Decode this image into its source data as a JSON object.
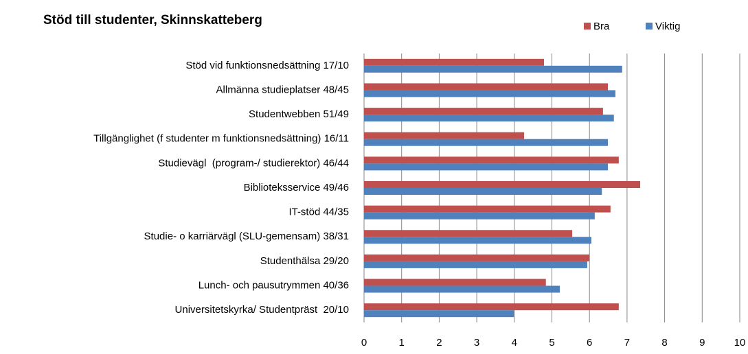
{
  "chart_data": {
    "type": "hbar",
    "title": "Stöd till studenter, Skinnskatteberg",
    "categories": [
      "Stöd vid funktionsnedsättning 17/10",
      "Allmänna studieplatser 48/45",
      "Studentwebben 51/49",
      "Tillgänglighet (f studenter m funktionsnedsättning) 16/11",
      "Studievägl  (program-/ studierektor) 46/44",
      "Biblioteksservice 49/46",
      "IT-stöd 44/35",
      "Studie- o karriärvägl (SLU-gemensam) 38/31",
      "Studenthälsa 29/20",
      "Lunch- och pausutrymmen 40/36",
      "Universitetskyrka/ Studentpräst  20/10"
    ],
    "series": [
      {
        "name": "Bra",
        "color": "#c0504d",
        "values": [
          4.79,
          6.49,
          6.36,
          4.26,
          6.78,
          7.35,
          6.56,
          5.54,
          6.0,
          4.84,
          6.78
        ]
      },
      {
        "name": "Viktig",
        "color": "#4f81bd",
        "values": [
          6.87,
          6.69,
          6.65,
          6.49,
          6.49,
          6.33,
          6.14,
          6.05,
          5.94,
          5.21,
          3.99
        ]
      }
    ],
    "xlim": [
      0,
      10
    ],
    "xticks": [
      0,
      1,
      2,
      3,
      4,
      5,
      6,
      7,
      8,
      9,
      10
    ],
    "grid": true,
    "legend": "top-right"
  }
}
